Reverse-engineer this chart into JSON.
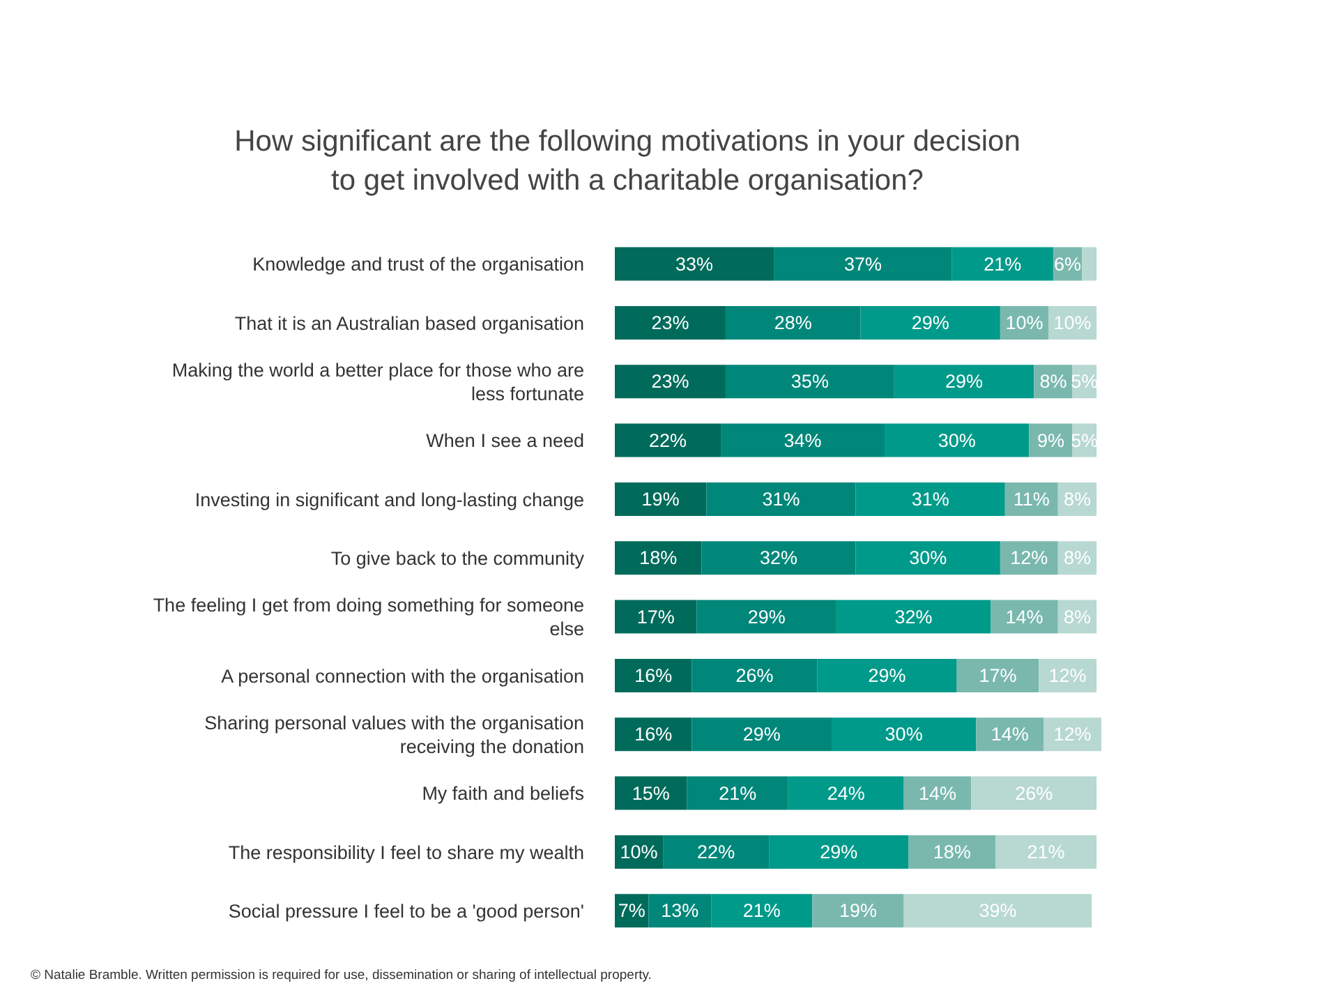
{
  "chart_data": {
    "type": "bar",
    "orientation": "horizontal",
    "stacked": true,
    "title": "How significant are the following motivations in your decision to get involved with a charitable organisation?",
    "categories": [
      "Knowledge and trust of the organisation",
      "That it is an Australian based organisation",
      "Making the world a better place for those who are less fortunate",
      "When I see a need",
      "Investing in significant and long-lasting change",
      "To give back to the community",
      "The feeling I get from doing something for someone else",
      "A personal connection with the organisation",
      "Sharing personal values with the organisation receiving the donation",
      "My faith and beliefs",
      "The responsibility I feel to share my wealth",
      "Social pressure I feel to be a 'good person'"
    ],
    "series": [
      {
        "color": "#006b5b",
        "values": [
          33,
          23,
          23,
          22,
          19,
          18,
          17,
          16,
          16,
          15,
          10,
          7
        ],
        "value_labels": [
          "33%",
          "23%",
          "23%",
          "22%",
          "19%",
          "18%",
          "17%",
          "16%",
          "16%",
          "15%",
          "10%",
          "7%"
        ]
      },
      {
        "color": "#00877a",
        "values": [
          37,
          28,
          35,
          34,
          31,
          32,
          29,
          26,
          29,
          21,
          22,
          13
        ],
        "value_labels": [
          "37%",
          "28%",
          "35%",
          "34%",
          "31%",
          "32%",
          "29%",
          "26%",
          "29%",
          "21%",
          "22%",
          "13%"
        ]
      },
      {
        "color": "#009a8a",
        "values": [
          21,
          29,
          29,
          30,
          31,
          30,
          32,
          29,
          30,
          24,
          29,
          21
        ],
        "value_labels": [
          "21%",
          "29%",
          "29%",
          "30%",
          "31%",
          "30%",
          "32%",
          "29%",
          "30%",
          "24%",
          "29%",
          "21%"
        ]
      },
      {
        "color": "#7ab8ae",
        "values": [
          6,
          10,
          8,
          9,
          11,
          12,
          14,
          17,
          14,
          14,
          18,
          19
        ],
        "value_labels": [
          "6%",
          "10%",
          "8%",
          "9%",
          "11%",
          "12%",
          "14%",
          "17%",
          "14%",
          "14%",
          "18%",
          "19%"
        ]
      },
      {
        "color": "#b8d8d2",
        "values": [
          3,
          10,
          5,
          5,
          8,
          8,
          8,
          12,
          12,
          26,
          21,
          39
        ],
        "value_labels": [
          null,
          "10%",
          "5%",
          "5%",
          "8%",
          "8%",
          "8%",
          "12%",
          "12%",
          "26%",
          "21%",
          "39%"
        ]
      }
    ],
    "tick_labels": "y",
    "grid": false,
    "legend": false,
    "annotations": [
      "© Natalie Bramble. Written permission is required for use, dissemination or sharing of intellectual property."
    ]
  }
}
